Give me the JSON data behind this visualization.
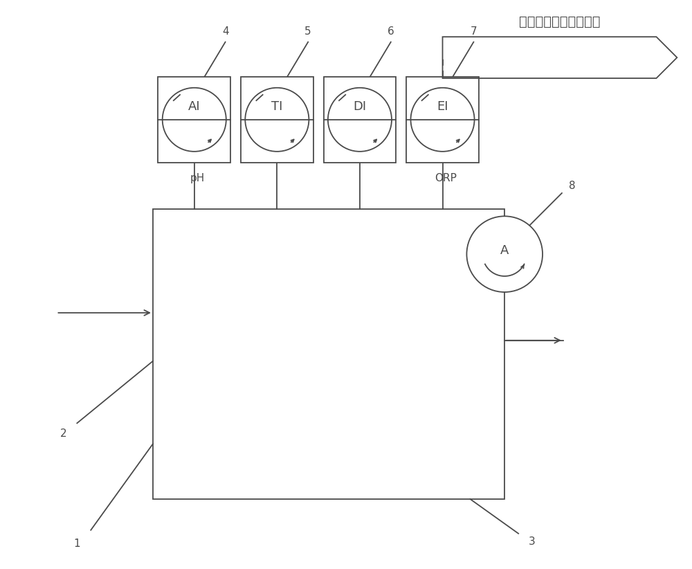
{
  "title_text": "与氧化风调节阀等连锁",
  "instrument_labels": [
    "AI",
    "TI",
    "DI",
    "EI"
  ],
  "bg_color": "#ffffff",
  "line_color": "#4a4a4a",
  "font_size_title": 14,
  "font_size_label": 11,
  "font_size_instrument": 13,
  "font_size_number": 11
}
